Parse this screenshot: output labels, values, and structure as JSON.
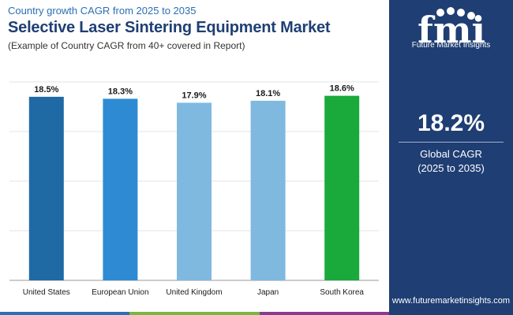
{
  "header": {
    "subtitle": "Country growth CAGR from 2025 to 2035",
    "title": "Selective Laser Sintering Equipment Market",
    "note": "(Example of Country CAGR from 40+ covered in Report)"
  },
  "sidebar": {
    "logo_text": "Future Market Insights",
    "logo_letters": "fmi",
    "headline_value": "18.2%",
    "headline_label_1": "Global CAGR",
    "headline_label_2": "(2025 to 2035)",
    "url": "www.futuremarketinsights.com",
    "background_color": "#1f3e73"
  },
  "colors": {
    "stripe": [
      "#2f6fb2",
      "#7ab640",
      "#8a3b8f"
    ]
  },
  "chart_data": {
    "type": "bar",
    "categories": [
      "United States",
      "European Union",
      "United Kingdom",
      "Japan",
      "South Korea"
    ],
    "values": [
      18.5,
      18.3,
      17.9,
      18.1,
      18.6
    ],
    "value_labels": [
      "18.5%",
      "18.3%",
      "17.9%",
      "18.1%",
      "18.6%"
    ],
    "colors": [
      "#1f6aa5",
      "#2e8bd3",
      "#7fb9e0",
      "#7fb9e0",
      "#1aaa3c"
    ],
    "title": "",
    "xlabel": "",
    "ylabel": "",
    "grid": true
  }
}
